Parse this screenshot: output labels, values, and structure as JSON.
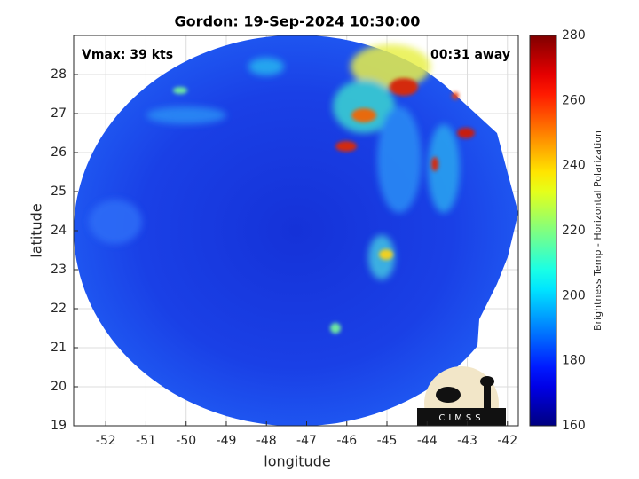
{
  "chart_data": {
    "type": "image",
    "title": "Gordon: 19-Sep-2024 10:30:00",
    "annotations": [
      "Vmax: 39 kts",
      "00:31 away"
    ],
    "xlabel": "longitude",
    "ylabel": "latitude",
    "xlim": [
      -52.8,
      -41.73
    ],
    "xticks": [
      -52,
      -51,
      -50,
      -49,
      -48,
      -47,
      -46,
      -45,
      -44,
      -43,
      -42
    ],
    "ylim": [
      19,
      29
    ],
    "yticks": [
      19,
      20,
      21,
      22,
      23,
      24,
      25,
      26,
      27,
      28
    ],
    "grid": true,
    "colorbar": {
      "label": "Brightness Temp - Horizontal Polarization",
      "clim": [
        160,
        280
      ],
      "ticks": [
        160,
        180,
        200,
        220,
        240,
        260,
        280
      ],
      "colormap": "jet"
    },
    "logo": "CIMSS"
  }
}
